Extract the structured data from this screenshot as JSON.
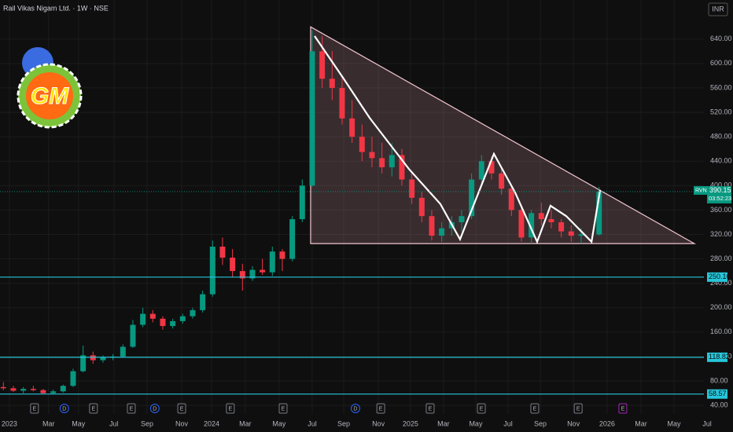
{
  "chart_data": {
    "type": "candlestick",
    "title": "Rail Vikas Nigam Ltd. · 1W · NSE",
    "currency": "INR",
    "logo_text": "GM",
    "symbol": "RVNL",
    "last_price": {
      "value": 390.15,
      "label": "390.15"
    },
    "countdown": "03:52:23",
    "up_color": "#089981",
    "down_color": "#f23645",
    "x": [
      2022.97,
      2023.02,
      2023.07,
      2023.12,
      2023.17,
      2023.22,
      2023.27,
      2023.32,
      2023.37,
      2023.42,
      2023.47,
      2023.52,
      2023.57,
      2023.62,
      2023.67,
      2023.72,
      2023.77,
      2023.82,
      2023.87,
      2023.92,
      2023.97,
      2024.02,
      2024.07,
      2024.12,
      2024.17,
      2024.22,
      2024.27,
      2024.32,
      2024.37,
      2024.42,
      2024.47,
      2024.52,
      2024.57,
      2024.62,
      2024.67,
      2024.72,
      2024.77,
      2024.82,
      2024.87,
      2024.92,
      2024.97,
      2025.02,
      2025.07,
      2025.12,
      2025.17,
      2025.22,
      2025.27,
      2025.32,
      2025.37,
      2025.42,
      2025.47,
      2025.52,
      2025.57,
      2025.62,
      2025.67,
      2025.72,
      2025.77,
      2025.82,
      2025.87,
      2025.96
    ],
    "open": [
      70,
      68,
      64,
      67,
      65,
      60,
      63,
      72,
      96,
      122,
      114,
      118,
      120,
      136,
      172,
      190,
      182,
      170,
      178,
      186,
      196,
      222,
      300,
      282,
      260,
      248,
      262,
      258,
      292,
      280,
      345,
      400,
      620,
      575,
      560,
      510,
      480,
      455,
      445,
      430,
      450,
      410,
      380,
      350,
      318,
      330,
      340,
      350,
      410,
      440,
      420,
      395,
      360,
      315,
      355,
      345,
      340,
      325,
      318,
      320
    ],
    "high": [
      78,
      72,
      70,
      72,
      67,
      66,
      74,
      100,
      138,
      128,
      122,
      124,
      140,
      180,
      200,
      196,
      186,
      182,
      190,
      200,
      228,
      310,
      315,
      296,
      272,
      268,
      280,
      300,
      296,
      350,
      410,
      654,
      645,
      620,
      580,
      540,
      500,
      480,
      470,
      470,
      460,
      420,
      390,
      360,
      340,
      350,
      360,
      420,
      450,
      448,
      430,
      400,
      365,
      360,
      372,
      360,
      345,
      335,
      330,
      398
    ],
    "low": [
      65,
      62,
      60,
      63,
      58,
      58,
      61,
      70,
      94,
      108,
      110,
      114,
      118,
      134,
      168,
      176,
      164,
      166,
      174,
      182,
      192,
      218,
      270,
      250,
      228,
      244,
      254,
      252,
      260,
      276,
      340,
      398,
      560,
      540,
      500,
      470,
      440,
      430,
      420,
      415,
      400,
      370,
      340,
      310,
      308,
      318,
      325,
      345,
      400,
      410,
      385,
      350,
      308,
      305,
      335,
      330,
      315,
      308,
      305,
      318
    ],
    "close": [
      68,
      64,
      67,
      65,
      60,
      63,
      72,
      96,
      122,
      114,
      118,
      120,
      136,
      172,
      190,
      182,
      170,
      178,
      186,
      196,
      222,
      300,
      282,
      260,
      248,
      262,
      258,
      292,
      280,
      345,
      400,
      620,
      575,
      560,
      510,
      480,
      455,
      445,
      430,
      450,
      410,
      380,
      350,
      318,
      330,
      340,
      350,
      410,
      440,
      420,
      395,
      360,
      315,
      355,
      345,
      340,
      325,
      318,
      320,
      390.15
    ],
    "xlim": [
      2022.953,
      2026.632
    ],
    "ylim": [
      26,
      704
    ],
    "yticks": [
      {
        "value": 40,
        "label": "40.00"
      },
      {
        "value": 80,
        "label": "80.00"
      },
      {
        "value": 120,
        "label": "120.00"
      },
      {
        "value": 160,
        "label": "160.00"
      },
      {
        "value": 200,
        "label": "200.00"
      },
      {
        "value": 240,
        "label": "240.00"
      },
      {
        "value": 280,
        "label": "280.00"
      },
      {
        "value": 320,
        "label": "320.00"
      },
      {
        "value": 360,
        "label": "360.00"
      },
      {
        "value": 400,
        "label": "400.00"
      },
      {
        "value": 440,
        "label": "440.00"
      },
      {
        "value": 480,
        "label": "480.00"
      },
      {
        "value": 520,
        "label": "520.00"
      },
      {
        "value": 560,
        "label": "560.00"
      },
      {
        "value": 600,
        "label": "600.00"
      },
      {
        "value": 640,
        "label": "640.00"
      }
    ],
    "xticks": [
      {
        "value": 2023.0,
        "label": "2023"
      },
      {
        "value": 2023.197,
        "label": "Mar"
      },
      {
        "value": 2023.347,
        "label": "May"
      },
      {
        "value": 2023.525,
        "label": "Jul"
      },
      {
        "value": 2023.691,
        "label": "Sep"
      },
      {
        "value": 2023.865,
        "label": "Nov"
      },
      {
        "value": 2024.015,
        "label": "2024"
      },
      {
        "value": 2024.184,
        "label": "Mar"
      },
      {
        "value": 2024.354,
        "label": "May"
      },
      {
        "value": 2024.52,
        "label": "Jul"
      },
      {
        "value": 2024.678,
        "label": "Sep"
      },
      {
        "value": 2024.852,
        "label": "Nov"
      },
      {
        "value": 2025.013,
        "label": "2025"
      },
      {
        "value": 2025.179,
        "label": "Mar"
      },
      {
        "value": 2025.341,
        "label": "May"
      },
      {
        "value": 2025.503,
        "label": "Jul"
      },
      {
        "value": 2025.665,
        "label": "Sep"
      },
      {
        "value": 2025.831,
        "label": "Nov"
      },
      {
        "value": 2026.0,
        "label": "2026"
      },
      {
        "value": 2026.17,
        "label": "Mar"
      },
      {
        "value": 2026.336,
        "label": "May"
      },
      {
        "value": 2026.502,
        "label": "Jul"
      }
    ],
    "hlines": [
      {
        "value": 250.1,
        "label": "250.10"
      },
      {
        "value": 118.82,
        "label": "118.82"
      },
      {
        "value": 58.57,
        "label": "58.57"
      }
    ],
    "hline_color": "#26c6da",
    "triangle": {
      "x": [
        2024.512,
        2026.438,
        2024.512
      ],
      "y": [
        660,
        305,
        305
      ]
    },
    "zigzag": {
      "x": [
        2024.532,
        2024.678,
        2024.808,
        2025.006,
        2025.163,
        2025.262,
        2025.432,
        2025.538,
        2025.649,
        2025.716,
        2025.795,
        2025.922,
        2025.965
      ],
      "y": [
        645,
        575,
        511,
        427,
        370,
        312,
        452,
        389,
        308,
        367,
        350,
        308,
        393
      ]
    },
    "events": [
      {
        "x": 2023.126,
        "label": "E"
      },
      {
        "x": 2023.276,
        "label": "D"
      },
      {
        "x": 2023.422,
        "label": "E"
      },
      {
        "x": 2023.612,
        "label": "E"
      },
      {
        "x": 2023.73,
        "label": "D"
      },
      {
        "x": 2023.865,
        "label": "E"
      },
      {
        "x": 2024.109,
        "label": "E"
      },
      {
        "x": 2024.374,
        "label": "E"
      },
      {
        "x": 2024.737,
        "label": "D"
      },
      {
        "x": 2024.864,
        "label": "E"
      },
      {
        "x": 2025.112,
        "label": "E"
      },
      {
        "x": 2025.369,
        "label": "E"
      },
      {
        "x": 2025.637,
        "label": "E"
      },
      {
        "x": 2025.855,
        "label": "E"
      },
      {
        "x": 2026.079,
        "label": "E"
      }
    ],
    "grid": true
  }
}
